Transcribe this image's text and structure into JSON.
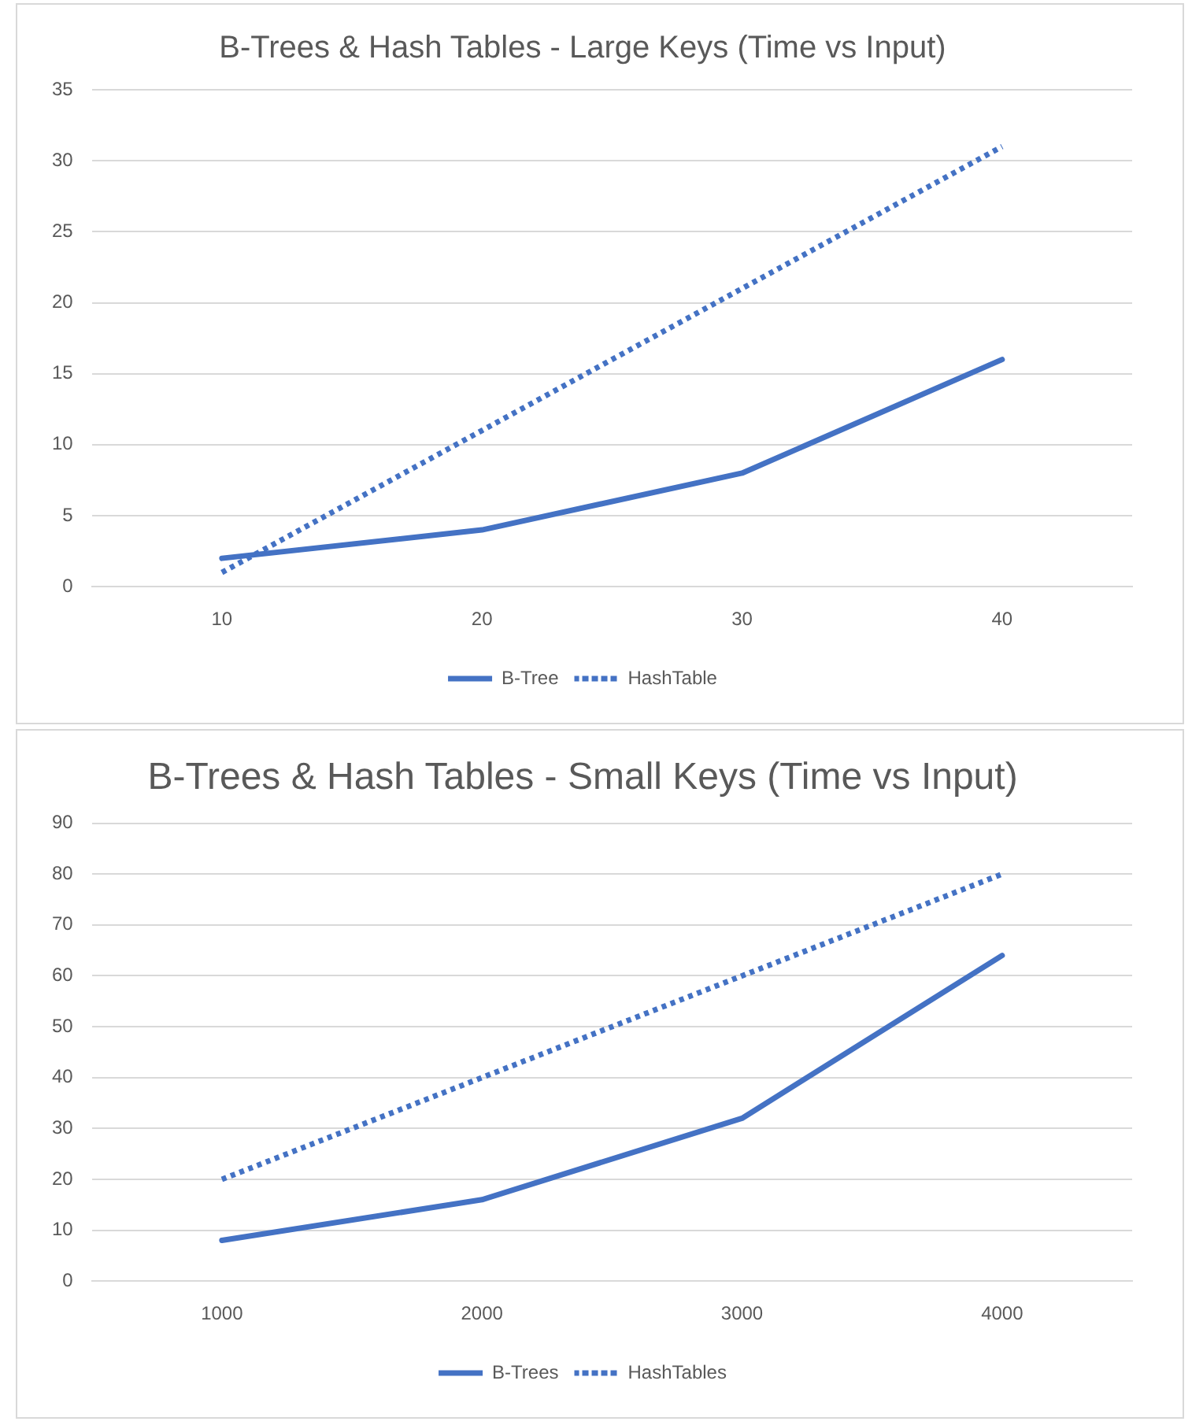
{
  "chart_data": [
    {
      "type": "line",
      "title": "B-Trees & Hash Tables - Large Keys (Time vs Input)",
      "categories": [
        "10",
        "20",
        "30",
        "40"
      ],
      "series": [
        {
          "name": "B-Tree",
          "color": "#4472c4",
          "values": [
            2,
            4,
            8,
            16
          ],
          "line_style": "solid"
        },
        {
          "name": "HashTable",
          "color": "#4472c4",
          "values": [
            1,
            11,
            21,
            31
          ],
          "line_style": "dotted"
        }
      ],
      "ylim": [
        0,
        35
      ],
      "yticks": [
        0,
        5,
        10,
        15,
        20,
        25,
        30,
        35
      ],
      "grid": "y",
      "legend": "bottom",
      "marker": "none"
    },
    {
      "type": "line",
      "title": "B-Trees & Hash Tables - Small Keys (Time vs Input)",
      "categories": [
        "1000",
        "2000",
        "3000",
        "4000"
      ],
      "series": [
        {
          "name": "B-Trees",
          "color": "#4472c4",
          "values": [
            8,
            16,
            32,
            64
          ],
          "line_style": "solid"
        },
        {
          "name": "HashTables",
          "color": "#4472c4",
          "values": [
            20,
            40,
            60,
            80
          ],
          "line_style": "dotted"
        }
      ],
      "ylim": [
        0,
        90
      ],
      "yticks": [
        0,
        10,
        20,
        30,
        40,
        50,
        60,
        70,
        80,
        90
      ],
      "grid": "y",
      "legend": "bottom",
      "marker": "none"
    }
  ]
}
